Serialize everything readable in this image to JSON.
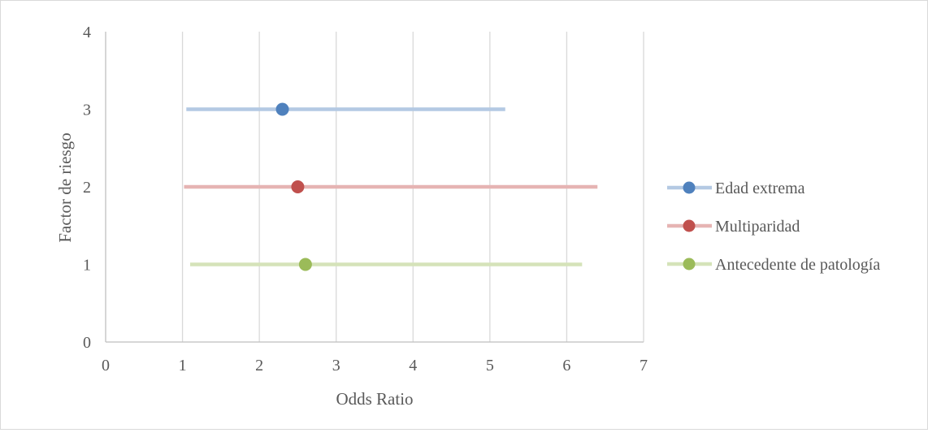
{
  "chart_data": {
    "type": "scatter",
    "xlabel": "Odds Ratio",
    "ylabel": "Factor de riesgo",
    "xlim": [
      0,
      7
    ],
    "ylim": [
      0,
      4
    ],
    "xticks": [
      0,
      1,
      2,
      3,
      4,
      5,
      6,
      7
    ],
    "yticks": [
      0,
      1,
      2,
      3,
      4
    ],
    "grid": "vertical",
    "legend": "right",
    "series": [
      {
        "name": "Edad extrema",
        "y": 3,
        "or": 2.3,
        "ci_low": 1.05,
        "ci_high": 5.2,
        "color": "#4f81bd",
        "line_color": "#b4c9e3"
      },
      {
        "name": "Multiparidad",
        "y": 2,
        "or": 2.5,
        "ci_low": 1.02,
        "ci_high": 6.4,
        "color": "#c0504d",
        "line_color": "#e6b4b3"
      },
      {
        "name": "Antecedente de patología",
        "y": 1,
        "or": 2.6,
        "ci_low": 1.1,
        "ci_high": 6.2,
        "color": "#9bbb59",
        "line_color": "#d5e3b9"
      }
    ]
  }
}
